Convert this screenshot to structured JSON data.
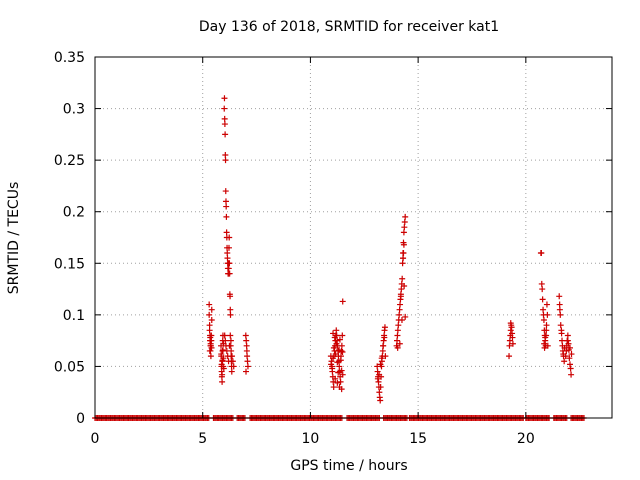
{
  "chart_data": {
    "type": "scatter",
    "title": "Day 136 of 2018, SRMTID for receiver kat1",
    "xlabel": "GPS time / hours",
    "ylabel": "SRMTID / TECUs",
    "xlim": [
      0,
      24
    ],
    "ylim": [
      0,
      0.35
    ],
    "x_ticks": [
      0,
      5,
      10,
      15,
      20
    ],
    "x_tick_labels": [
      "0",
      "5",
      "10",
      "15",
      "20"
    ],
    "y_ticks": [
      0,
      0.05,
      0.1,
      0.15,
      0.2,
      0.25,
      0.3,
      0.35
    ],
    "y_tick_labels": [
      "0",
      "0.05",
      "0.1",
      "0.15",
      "0.2",
      "0.25",
      "0.3",
      "0.35"
    ],
    "grid": true,
    "legend": "none",
    "marker": "+",
    "marker_color": "#cc0000",
    "zero_segments_hours": [
      [
        0.0,
        5.3
      ],
      [
        5.5,
        6.4
      ],
      [
        6.6,
        7.0
      ],
      [
        7.2,
        11.5
      ],
      [
        11.7,
        13.2
      ],
      [
        13.4,
        14.5
      ],
      [
        14.6,
        19.9
      ],
      [
        20.0,
        21.1
      ],
      [
        21.3,
        21.9
      ],
      [
        22.1,
        22.7
      ]
    ],
    "series": [
      {
        "x": [
          5.3,
          5.3,
          5.32,
          5.32,
          5.34,
          5.34,
          5.36,
          5.36,
          5.38,
          5.38,
          5.4,
          5.4,
          5.42,
          5.42,
          5.33,
          5.37,
          5.41,
          5.35,
          5.85,
          5.86,
          5.87,
          5.88,
          5.89,
          5.9,
          5.91,
          5.92,
          5.93,
          5.94,
          5.95,
          5.96,
          5.86,
          5.88,
          5.9,
          5.92,
          5.94,
          5.96,
          5.98,
          6.0,
          6.01,
          6.02,
          6.03,
          6.04,
          6.05,
          6.06,
          6.07,
          6.08,
          6.09,
          6.1,
          6.11,
          6.12,
          6.13,
          6.14,
          6.15,
          6.16,
          6.17,
          6.18,
          6.19,
          6.2,
          6.21,
          6.22,
          6.23,
          6.24,
          6.25,
          6.26,
          6.27,
          6.28,
          6.29,
          6.3,
          6.31,
          6.32,
          6.33,
          6.34,
          6.35,
          6.02,
          6.05,
          6.08,
          6.12,
          6.16,
          6.2,
          6.24,
          6.28,
          6.32,
          6.36,
          6.4,
          6.44,
          7.0,
          7.02,
          7.04,
          7.06,
          7.08,
          7.1,
          7.01,
          7.05,
          10.95,
          10.98,
          11.0,
          11.02,
          11.04,
          11.06,
          11.08,
          11.1,
          11.12,
          11.14,
          11.16,
          11.18,
          11.2,
          11.22,
          11.24,
          11.26,
          11.28,
          11.3,
          11.32,
          11.34,
          11.36,
          11.38,
          11.4,
          11.42,
          11.44,
          11.46,
          11.48,
          11.5,
          10.96,
          11.01,
          11.05,
          11.09,
          11.13,
          11.17,
          11.21,
          11.25,
          11.29,
          11.33,
          11.37,
          11.41,
          11.45,
          11.49,
          11.05,
          11.15,
          11.25,
          11.35,
          11.45,
          11.5,
          13.1,
          13.12,
          13.14,
          13.16,
          13.18,
          13.2,
          13.22,
          13.24,
          13.26,
          13.28,
          13.3,
          13.32,
          13.34,
          13.36,
          13.38,
          13.4,
          13.42,
          13.44,
          13.46,
          13.48,
          13.13,
          13.19,
          13.25,
          13.31,
          13.37,
          13.43,
          14.0,
          14.02,
          14.04,
          14.06,
          14.08,
          14.1,
          14.12,
          14.14,
          14.16,
          14.18,
          14.2,
          14.22,
          14.24,
          14.26,
          14.28,
          14.3,
          14.32,
          14.34,
          14.36,
          14.38,
          14.4,
          14.05,
          14.15,
          14.25,
          14.35,
          14.2,
          14.3,
          14.4,
          14.3,
          14.32,
          14.34,
          19.22,
          19.24,
          19.26,
          19.28,
          19.3,
          19.32,
          19.34,
          19.36,
          19.38,
          19.4,
          19.3,
          20.7,
          20.72,
          20.74,
          20.76,
          20.78,
          20.8,
          20.82,
          20.84,
          20.86,
          20.88,
          20.9,
          20.92,
          20.94,
          20.96,
          20.98,
          21.0,
          21.02,
          20.85,
          20.87,
          20.9,
          20.95,
          21.55,
          21.57,
          21.6,
          21.62,
          21.65,
          21.68,
          21.7,
          21.72,
          21.75,
          21.78,
          21.8,
          21.58,
          21.66,
          21.74,
          21.85,
          21.88,
          21.9,
          21.92,
          21.95,
          21.98,
          22.0,
          22.02,
          22.05,
          22.08,
          22.1,
          22.12,
          21.95,
          22.05
        ],
        "y": [
          0.11,
          0.1,
          0.09,
          0.085,
          0.08,
          0.075,
          0.07,
          0.065,
          0.06,
          0.07,
          0.075,
          0.08,
          0.105,
          0.095,
          0.065,
          0.072,
          0.068,
          0.078,
          0.07,
          0.06,
          0.05,
          0.045,
          0.04,
          0.035,
          0.055,
          0.065,
          0.075,
          0.08,
          0.05,
          0.058,
          0.062,
          0.052,
          0.042,
          0.056,
          0.066,
          0.072,
          0.048,
          0.3,
          0.31,
          0.29,
          0.285,
          0.275,
          0.255,
          0.25,
          0.22,
          0.21,
          0.205,
          0.195,
          0.18,
          0.175,
          0.165,
          0.16,
          0.155,
          0.15,
          0.145,
          0.14,
          0.14,
          0.15,
          0.145,
          0.165,
          0.175,
          0.15,
          0.14,
          0.12,
          0.118,
          0.105,
          0.1,
          0.07,
          0.075,
          0.06,
          0.055,
          0.05,
          0.045,
          0.08,
          0.075,
          0.07,
          0.065,
          0.06,
          0.055,
          0.07,
          0.08,
          0.065,
          0.06,
          0.055,
          0.05,
          0.08,
          0.075,
          0.07,
          0.06,
          0.055,
          0.05,
          0.045,
          0.065,
          0.06,
          0.055,
          0.05,
          0.045,
          0.04,
          0.035,
          0.03,
          0.06,
          0.065,
          0.07,
          0.075,
          0.08,
          0.085,
          0.08,
          0.075,
          0.07,
          0.065,
          0.06,
          0.055,
          0.05,
          0.045,
          0.04,
          0.035,
          0.06,
          0.065,
          0.07,
          0.08,
          0.113,
          0.052,
          0.048,
          0.058,
          0.068,
          0.078,
          0.062,
          0.072,
          0.054,
          0.044,
          0.066,
          0.076,
          0.056,
          0.046,
          0.064,
          0.082,
          0.038,
          0.034,
          0.03,
          0.028,
          0.042,
          0.05,
          0.045,
          0.04,
          0.035,
          0.03,
          0.025,
          0.02,
          0.017,
          0.03,
          0.04,
          0.05,
          0.055,
          0.06,
          0.065,
          0.07,
          0.075,
          0.08,
          0.085,
          0.088,
          0.06,
          0.038,
          0.042,
          0.052,
          0.058,
          0.07,
          0.078,
          0.07,
          0.075,
          0.08,
          0.085,
          0.09,
          0.095,
          0.1,
          0.105,
          0.11,
          0.115,
          0.12,
          0.125,
          0.13,
          0.135,
          0.15,
          0.16,
          0.17,
          0.18,
          0.185,
          0.19,
          0.195,
          0.068,
          0.072,
          0.095,
          0.128,
          0.118,
          0.155,
          0.098,
          0.155,
          0.16,
          0.168,
          0.06,
          0.07,
          0.075,
          0.08,
          0.085,
          0.09,
          0.088,
          0.082,
          0.078,
          0.072,
          0.092,
          0.16,
          0.16,
          0.13,
          0.125,
          0.115,
          0.105,
          0.1,
          0.095,
          0.085,
          0.08,
          0.075,
          0.07,
          0.08,
          0.09,
          0.11,
          0.1,
          0.07,
          0.072,
          0.068,
          0.078,
          0.085,
          0.118,
          0.11,
          0.1,
          0.09,
          0.085,
          0.075,
          0.07,
          0.065,
          0.06,
          0.055,
          0.068,
          0.105,
          0.082,
          0.062,
          0.06,
          0.065,
          0.07,
          0.075,
          0.08,
          0.072,
          0.066,
          0.058,
          0.052,
          0.048,
          0.042,
          0.062,
          0.075,
          0.068
        ]
      }
    ]
  }
}
